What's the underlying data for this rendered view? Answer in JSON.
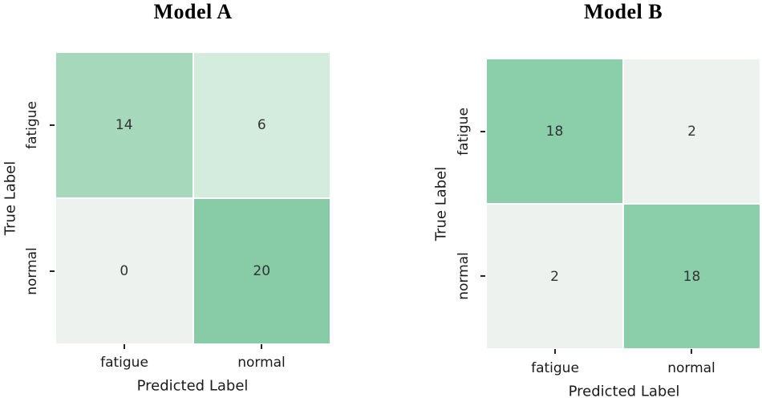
{
  "figure": {
    "background": "#ffffff",
    "text_color": "#1b1b1b",
    "tick_color": "#262626",
    "annotation_color": "#333333"
  },
  "chart_data": [
    {
      "type": "heatmap",
      "panel": "left",
      "title": "Model A",
      "xlabel": "Predicted Label",
      "ylabel": "True Label",
      "x_categories": [
        "fatigue",
        "normal"
      ],
      "y_categories": [
        "fatigue",
        "normal"
      ],
      "matrix": [
        [
          14,
          6
        ],
        [
          0,
          20
        ]
      ],
      "cell_colors": [
        [
          "#a6d8bb",
          "#d4ecdd"
        ],
        [
          "#eef2ee",
          "#87cca6"
        ]
      ],
      "value_min": 0,
      "value_max": 20,
      "colormap": "light-green",
      "legend": "none",
      "grid": false
    },
    {
      "type": "heatmap",
      "panel": "right",
      "title": "Model B",
      "xlabel": "Predicted Label",
      "ylabel": "True Label",
      "x_categories": [
        "fatigue",
        "normal"
      ],
      "y_categories": [
        "fatigue",
        "normal"
      ],
      "matrix": [
        [
          18,
          2
        ],
        [
          2,
          18
        ]
      ],
      "cell_colors": [
        [
          "#8bceaa",
          "#edf2ee"
        ],
        [
          "#edf2ee",
          "#8bceaa"
        ]
      ],
      "value_min": 2,
      "value_max": 18,
      "colormap": "light-green",
      "legend": "none",
      "grid": false
    }
  ]
}
